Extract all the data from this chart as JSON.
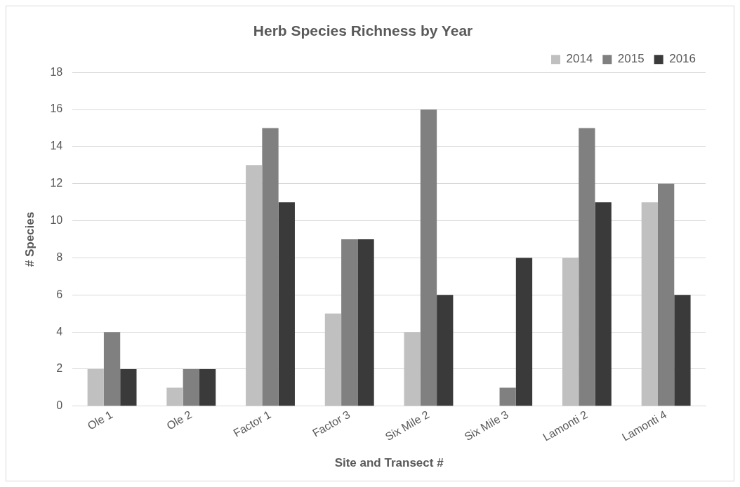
{
  "chart_data": {
    "type": "bar",
    "title": "Herb Species Richness by Year",
    "xlabel": "Site and Transect #",
    "ylabel": "# Species",
    "categories": [
      "Ole 1",
      "Ole 2",
      "Factor 1",
      "Factor 3",
      "Six Mile 2",
      "Six Mile 3",
      "Lamonti 2",
      "Lamonti 4"
    ],
    "series": [
      {
        "name": "2014",
        "color": "#c0c0c0",
        "values": [
          2,
          1,
          13,
          5,
          4,
          0,
          8,
          11
        ]
      },
      {
        "name": "2015",
        "color": "#808080",
        "values": [
          4,
          2,
          15,
          9,
          16,
          1,
          15,
          12
        ]
      },
      {
        "name": "2016",
        "color": "#3a3a3a",
        "values": [
          2,
          2,
          11,
          9,
          6,
          8,
          11,
          6
        ]
      }
    ],
    "ylim": [
      0,
      18
    ],
    "yticks": [
      0,
      2,
      4,
      6,
      8,
      10,
      12,
      14,
      16,
      18
    ],
    "grid": "y",
    "legend": "top right"
  }
}
